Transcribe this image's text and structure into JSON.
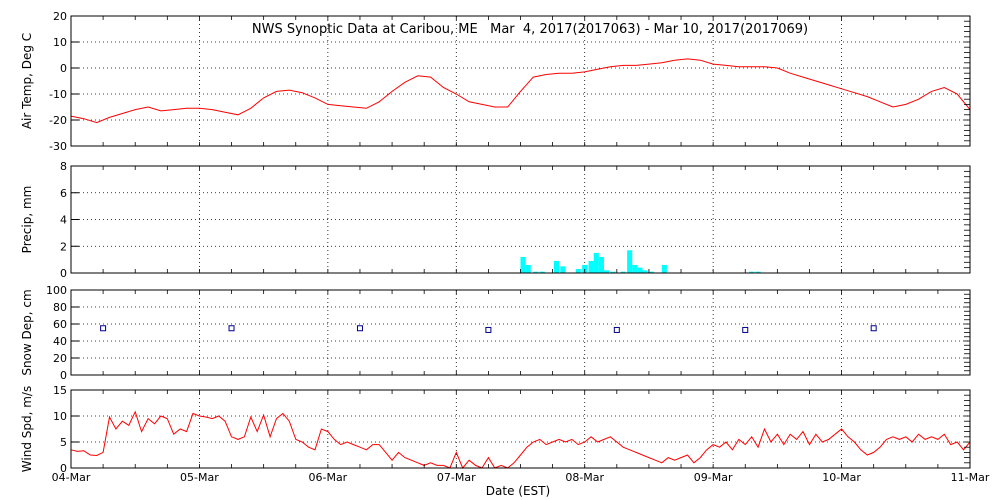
{
  "chart_data": {
    "type": "line",
    "title": "NWS Synoptic Data at Caribou, ME   Mar  4, 2017(2017063) - Mar 10, 2017(2017069)",
    "xlabel": "Date (EST)",
    "x_range": [
      "2017-03-04",
      "2017-03-11"
    ],
    "x_ticks": [
      "04-Mar",
      "05-Mar",
      "06-Mar",
      "07-Mar",
      "08-Mar",
      "09-Mar",
      "10-Mar",
      "11-Mar"
    ],
    "grid": true,
    "colors": {
      "air_temp": "#ff0000",
      "precip": "#00ffff",
      "snow_depth": "#00008b",
      "wind_speed": "#ff0000",
      "grid": "#000000"
    },
    "panels": [
      {
        "id": "air_temp",
        "type": "line",
        "ylabel": "Air Temp, Deg C",
        "ylim": [
          -30,
          20
        ],
        "yticks": [
          -30,
          -20,
          -10,
          0,
          10,
          20
        ],
        "x": [
          0,
          0.1,
          0.2,
          0.3,
          0.4,
          0.5,
          0.6,
          0.7,
          0.8,
          0.9,
          1.0,
          1.1,
          1.2,
          1.3,
          1.4,
          1.5,
          1.6,
          1.7,
          1.8,
          1.9,
          2.0,
          2.1,
          2.2,
          2.3,
          2.4,
          2.5,
          2.6,
          2.7,
          2.8,
          2.9,
          3.0,
          3.1,
          3.2,
          3.3,
          3.4,
          3.5,
          3.6,
          3.7,
          3.8,
          3.9,
          4.0,
          4.1,
          4.2,
          4.3,
          4.4,
          4.5,
          4.6,
          4.7,
          4.8,
          4.9,
          5.0,
          5.1,
          5.2,
          5.3,
          5.4,
          5.5,
          5.6,
          5.7,
          5.8,
          5.9,
          6.0,
          6.1,
          6.2,
          6.3,
          6.4,
          6.5,
          6.6,
          6.7,
          6.8,
          6.9,
          7.0
        ],
        "values": [
          -18.5,
          -19.5,
          -21,
          -19,
          -17.5,
          -16,
          -15,
          -16.5,
          -16,
          -15.5,
          -15.5,
          -16,
          -17,
          -18,
          -15.5,
          -11.5,
          -9,
          -8.5,
          -9.5,
          -11.5,
          -14,
          -14.5,
          -15,
          -15.5,
          -13,
          -9,
          -5.5,
          -3,
          -3.5,
          -7.5,
          -10,
          -13,
          -14,
          -15,
          -15,
          -9,
          -3.5,
          -2.5,
          -2,
          -2,
          -1.5,
          -0.5,
          0.5,
          1,
          1,
          1.5,
          2,
          3,
          3.5,
          3,
          1.5,
          1,
          0.5,
          0.5,
          0.5,
          0,
          -2,
          -3.5,
          -5,
          -6.5,
          -8,
          -9.5,
          -11,
          -13,
          -15,
          -14,
          -12,
          -9,
          -7.5,
          -10,
          -16
        ]
      },
      {
        "id": "precip",
        "type": "bar",
        "ylabel": "Precip, mm",
        "ylim": [
          0,
          8
        ],
        "yticks": [
          0,
          2,
          4,
          6,
          8
        ],
        "x": [
          3.52,
          3.56,
          3.62,
          3.67,
          3.78,
          3.83,
          3.95,
          4.0,
          4.05,
          4.09,
          4.13,
          4.17,
          4.22,
          4.3,
          4.35,
          4.39,
          4.43,
          4.47,
          4.52,
          4.62,
          5.3,
          5.35
        ],
        "values": [
          1.2,
          0.6,
          0.1,
          0.1,
          0.9,
          0.5,
          0.3,
          0.6,
          0.9,
          1.5,
          1.2,
          0.2,
          0.1,
          0.1,
          1.7,
          0.6,
          0.4,
          0.2,
          0.1,
          0.6,
          0.1,
          0.1
        ]
      },
      {
        "id": "snow_depth",
        "type": "scatter",
        "ylabel": "Snow Dep, cm",
        "ylim": [
          0,
          100
        ],
        "yticks": [
          0,
          20,
          40,
          60,
          80,
          100
        ],
        "x": [
          0.25,
          1.25,
          2.25,
          3.25,
          4.25,
          5.25,
          6.25
        ],
        "values": [
          55,
          55,
          55,
          53,
          53,
          53,
          55
        ]
      },
      {
        "id": "wind_speed",
        "type": "line",
        "ylabel": "Wind Spd, m/s",
        "ylim": [
          0,
          15
        ],
        "yticks": [
          0,
          5,
          10,
          15
        ],
        "x": [
          0,
          0.05,
          0.1,
          0.15,
          0.2,
          0.25,
          0.3,
          0.35,
          0.4,
          0.45,
          0.5,
          0.55,
          0.6,
          0.65,
          0.7,
          0.75,
          0.8,
          0.85,
          0.9,
          0.95,
          1.0,
          1.05,
          1.1,
          1.15,
          1.2,
          1.25,
          1.3,
          1.35,
          1.4,
          1.45,
          1.5,
          1.55,
          1.6,
          1.65,
          1.7,
          1.75,
          1.8,
          1.85,
          1.9,
          1.95,
          2.0,
          2.05,
          2.1,
          2.15,
          2.2,
          2.25,
          2.3,
          2.35,
          2.4,
          2.45,
          2.5,
          2.55,
          2.6,
          2.65,
          2.7,
          2.75,
          2.8,
          2.85,
          2.9,
          2.95,
          3.0,
          3.05,
          3.1,
          3.15,
          3.2,
          3.25,
          3.3,
          3.35,
          3.4,
          3.45,
          3.5,
          3.55,
          3.6,
          3.65,
          3.7,
          3.75,
          3.8,
          3.85,
          3.9,
          3.95,
          4.0,
          4.05,
          4.1,
          4.15,
          4.2,
          4.25,
          4.3,
          4.35,
          4.4,
          4.45,
          4.5,
          4.55,
          4.6,
          4.65,
          4.7,
          4.75,
          4.8,
          4.85,
          4.9,
          4.95,
          5.0,
          5.05,
          5.1,
          5.15,
          5.2,
          5.25,
          5.3,
          5.35,
          5.4,
          5.45,
          5.5,
          5.55,
          5.6,
          5.65,
          5.7,
          5.75,
          5.8,
          5.85,
          5.9,
          5.95,
          6.0,
          6.05,
          6.1,
          6.15,
          6.2,
          6.25,
          6.3,
          6.35,
          6.4,
          6.45,
          6.5,
          6.55,
          6.6,
          6.65,
          6.7,
          6.75,
          6.8,
          6.85,
          6.9,
          6.95,
          7.0
        ],
        "values": [
          3.5,
          3.2,
          3.3,
          2.5,
          2.4,
          3.0,
          9.8,
          7.5,
          9.0,
          8.2,
          10.8,
          7.0,
          9.5,
          8.5,
          10.0,
          9.5,
          6.5,
          7.5,
          7.0,
          10.5,
          10.0,
          9.8,
          9.5,
          10.0,
          9.0,
          6.0,
          5.5,
          6.0,
          9.8,
          7.0,
          10.2,
          6.0,
          9.5,
          10.5,
          9.0,
          5.5,
          5.0,
          4.0,
          3.5,
          7.5,
          7.0,
          5.5,
          4.5,
          5.0,
          4.5,
          4.0,
          3.5,
          4.5,
          4.5,
          3.0,
          1.5,
          3.0,
          2.0,
          1.5,
          1.0,
          0.5,
          1.0,
          0.5,
          0.5,
          0.0,
          3.0,
          0.0,
          1.5,
          0.5,
          0.0,
          2.0,
          0.0,
          0.5,
          0.0,
          1.0,
          2.5,
          4.0,
          5.0,
          5.5,
          4.5,
          5.0,
          5.5,
          5.0,
          5.5,
          4.5,
          5.0,
          6.0,
          5.0,
          5.5,
          6.0,
          5.0,
          4.0,
          3.5,
          3.0,
          2.5,
          2.0,
          1.5,
          1.0,
          2.0,
          1.5,
          2.0,
          2.5,
          1.0,
          2.0,
          3.5,
          4.5,
          4.0,
          5.0,
          3.5,
          5.5,
          4.5,
          6.0,
          4.0,
          7.5,
          5.0,
          6.5,
          4.5,
          6.5,
          5.5,
          7.0,
          4.5,
          6.5,
          5.0,
          5.5,
          6.5,
          7.5,
          6.0,
          5.0,
          3.5,
          2.5,
          3.0,
          4.0,
          5.5,
          6.0,
          5.5,
          6.0,
          5.0,
          6.5,
          5.5,
          6.0,
          5.5,
          6.5,
          4.5,
          5.0,
          3.5,
          5.0
        ]
      }
    ]
  }
}
